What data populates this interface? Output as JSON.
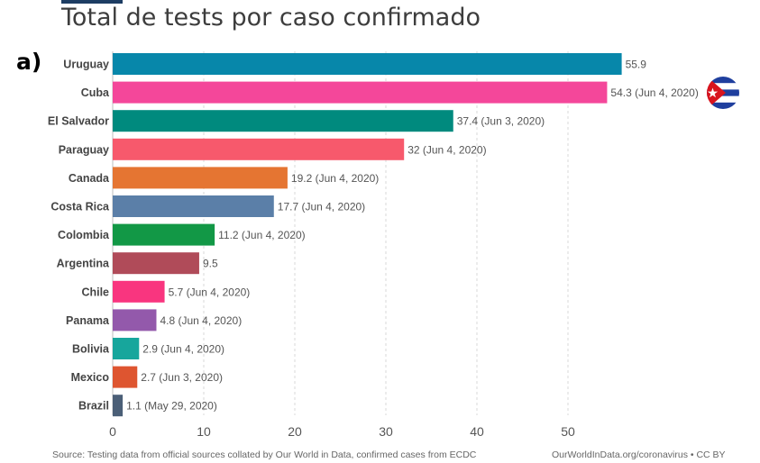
{
  "header": {
    "title": "Total de tests por caso confirmado",
    "panel_label": "a)"
  },
  "footer": {
    "source": "Source: Testing data from official sources collated by Our World in Data, confirmed cases from ECDC",
    "credit": "OurWorldInData.org/coronavirus • CC BY"
  },
  "flag_icon": "cuba-flag-icon",
  "chart_data": {
    "type": "bar",
    "orientation": "horizontal",
    "title": "Total de tests por caso confirmado",
    "xlim": [
      0,
      57
    ],
    "x_ticks": [
      0,
      10,
      20,
      30,
      40,
      50
    ],
    "grid": true,
    "bars": [
      {
        "country": "Uruguay",
        "value": 55.9,
        "label": "55.9",
        "color": "#0787aa"
      },
      {
        "country": "Cuba",
        "value": 54.3,
        "label": "54.3 (Jun 4, 2020)",
        "color": "#f4479a"
      },
      {
        "country": "El Salvador",
        "value": 37.4,
        "label": "37.4 (Jun 3, 2020)",
        "color": "#008a7e"
      },
      {
        "country": "Paraguay",
        "value": 32,
        "label": "32 (Jun 4, 2020)",
        "color": "#f7596c"
      },
      {
        "country": "Canada",
        "value": 19.2,
        "label": "19.2 (Jun 4, 2020)",
        "color": "#e57532"
      },
      {
        "country": "Costa Rica",
        "value": 17.7,
        "label": "17.7 (Jun 4, 2020)",
        "color": "#5b7fa8"
      },
      {
        "country": "Colombia",
        "value": 11.2,
        "label": "11.2 (Jun 4, 2020)",
        "color": "#129846"
      },
      {
        "country": "Argentina",
        "value": 9.5,
        "label": "9.5",
        "color": "#b04b59"
      },
      {
        "country": "Chile",
        "value": 5.7,
        "label": "5.7 (Jun 4, 2020)",
        "color": "#f9357f"
      },
      {
        "country": "Panama",
        "value": 4.8,
        "label": "4.8 (Jun 4, 2020)",
        "color": "#9359ab"
      },
      {
        "country": "Bolivia",
        "value": 2.9,
        "label": "2.9 (Jun 4, 2020)",
        "color": "#17a69c"
      },
      {
        "country": "Mexico",
        "value": 2.7,
        "label": "2.7 (Jun 3, 2020)",
        "color": "#de5530"
      },
      {
        "country": "Brazil",
        "value": 1.1,
        "label": "1.1 (May 29, 2020)",
        "color": "#4b5f77"
      }
    ]
  }
}
